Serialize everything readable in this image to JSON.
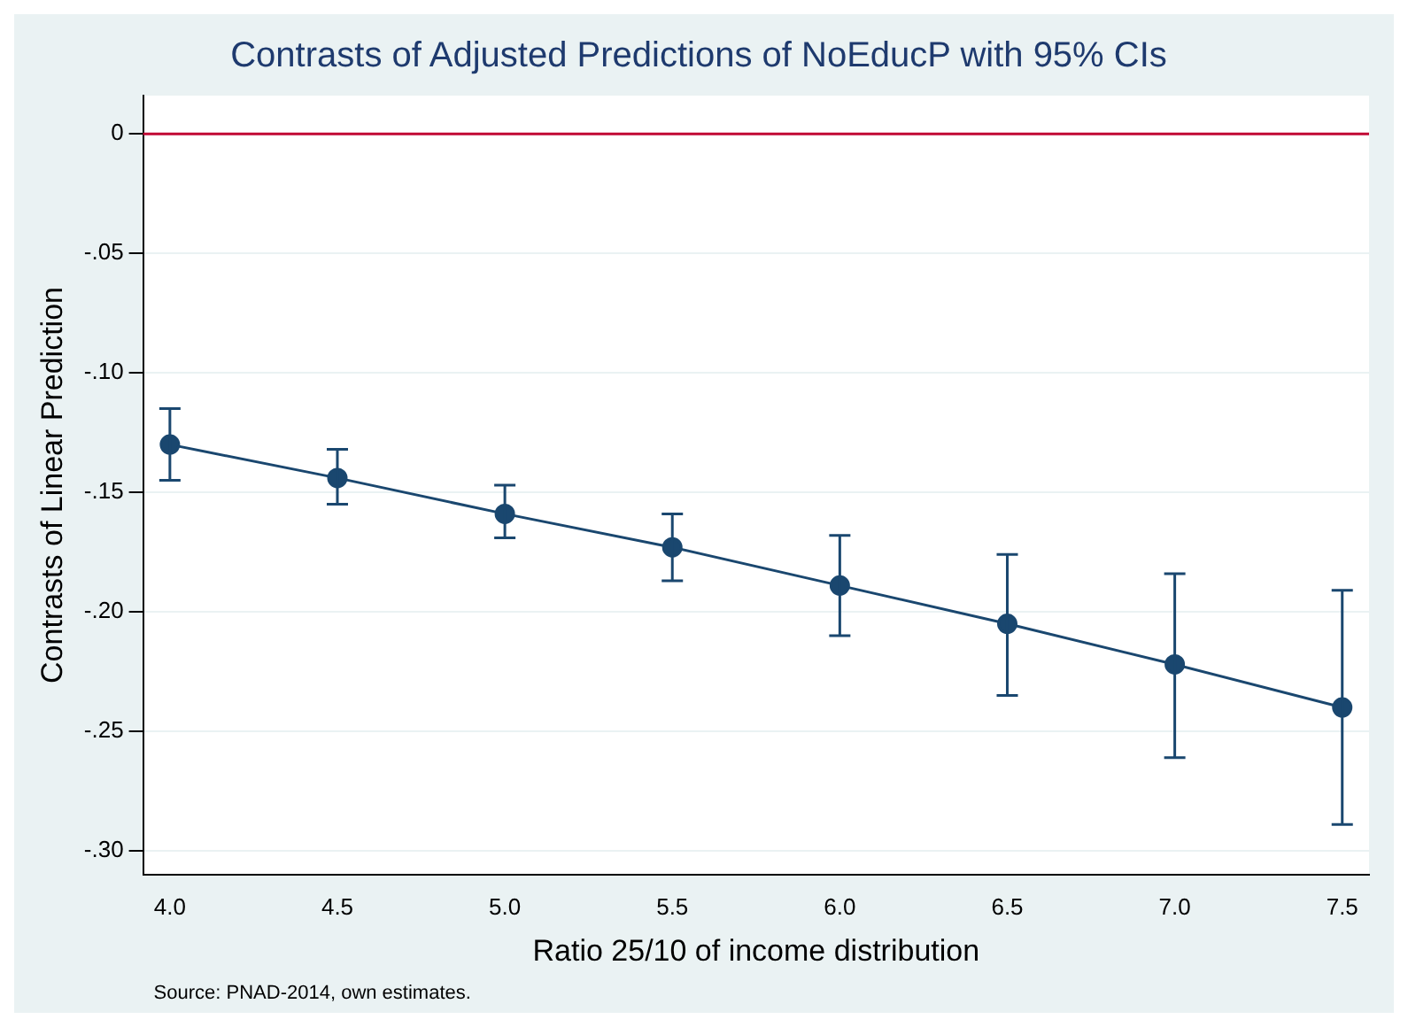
{
  "chart_data": {
    "type": "line",
    "title": "Contrasts of Adjusted Predictions of NoEducP with 95% CIs",
    "xlabel": "Ratio 25/10 of income distribution",
    "ylabel": "Contrasts of Linear Prediction",
    "x": [
      4.0,
      4.5,
      5.0,
      5.5,
      6.0,
      6.5,
      7.0,
      7.5
    ],
    "series": [
      {
        "color": "#1a476f",
        "values": [
          -0.13,
          -0.144,
          -0.159,
          -0.173,
          -0.189,
          -0.205,
          -0.222,
          -0.24
        ],
        "errors": [
          [
            -0.145,
            -0.115
          ],
          [
            -0.155,
            -0.132
          ],
          [
            -0.169,
            -0.147
          ],
          [
            -0.187,
            -0.159
          ],
          [
            -0.21,
            -0.168
          ],
          [
            -0.235,
            -0.176
          ],
          [
            -0.261,
            -0.184
          ],
          [
            -0.289,
            -0.191
          ]
        ]
      }
    ],
    "xlim": [
      3.92,
      7.58
    ],
    "xticks": [
      {
        "value": 4,
        "label": "4.0"
      },
      {
        "value": 4.5,
        "label": "4.5"
      },
      {
        "value": 5,
        "label": "5.0"
      },
      {
        "value": 5.5,
        "label": "5.5"
      },
      {
        "value": 6,
        "label": "6.0"
      },
      {
        "value": 6.5,
        "label": "6.5"
      },
      {
        "value": 7,
        "label": "7.0"
      },
      {
        "value": 7.5,
        "label": "7.5"
      }
    ],
    "ylim": [
      -0.31,
      0.016
    ],
    "yticks": [
      0,
      {
        "value": -0.05,
        "label": "-.05"
      },
      {
        "value": -0.1,
        "label": "-.10"
      },
      {
        "value": -0.15,
        "label": "-.15"
      },
      {
        "value": -0.2,
        "label": "-.20"
      },
      {
        "value": -0.25,
        "label": "-.25"
      },
      {
        "value": -0.3,
        "label": "-.30"
      }
    ],
    "grid": "y",
    "legend": false,
    "marker": "circle",
    "line_style": "solid",
    "ref_lines": [
      {
        "axis": "y",
        "value": 0,
        "color": "#c10534"
      }
    ],
    "annotations": [
      "Source: PNAD-2014, own estimates."
    ]
  }
}
